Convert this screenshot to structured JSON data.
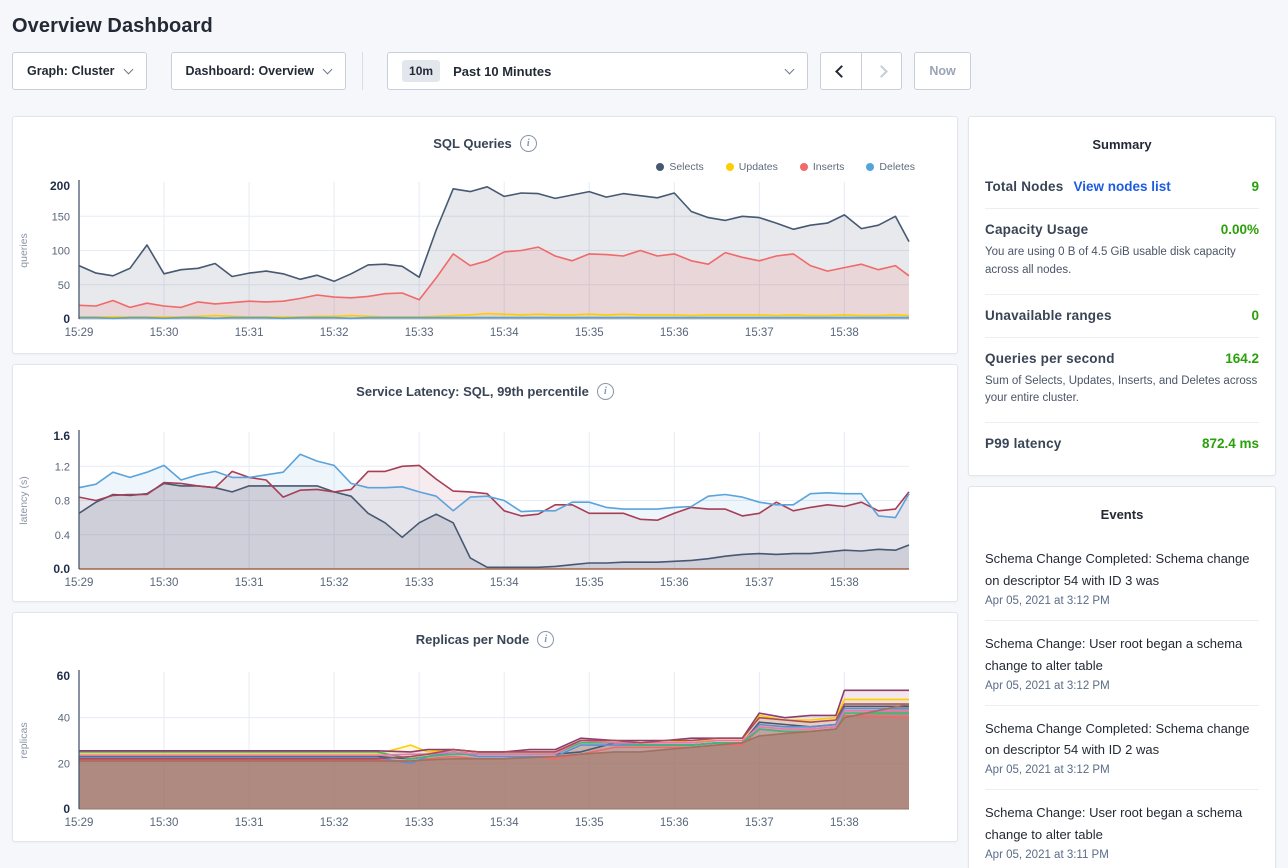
{
  "page_title": "Overview Dashboard",
  "icons": {
    "chevron_down": "chevron-down",
    "chevron_left": "chevron-left",
    "chevron_right": "chevron-right",
    "info": "i"
  },
  "toolbar": {
    "graph_dropdown_label": "Graph: Cluster",
    "dashboard_dropdown_label": "Dashboard: Overview",
    "time_badge": "10m",
    "time_label": "Past 10 Minutes",
    "now_label": "Now"
  },
  "sidebar": {
    "summary": {
      "title": "Summary",
      "rows": [
        {
          "label": "Total Nodes",
          "link": "View nodes list",
          "value": "9"
        },
        {
          "label": "Capacity Usage",
          "value": "0.00%",
          "description": "You are using 0 B of 4.5 GiB usable disk capacity across all nodes."
        },
        {
          "label": "Unavailable ranges",
          "value": "0"
        },
        {
          "label": "Queries per second",
          "value": "164.2",
          "description": "Sum of Selects, Updates, Inserts, and Deletes across your entire cluster."
        },
        {
          "label": "P99 latency",
          "value": "872.4 ms"
        }
      ]
    },
    "events": {
      "title": "Events",
      "items": [
        {
          "text": "Schema Change Completed: Schema change on descriptor 54 with ID 3 was",
          "timestamp": "Apr 05, 2021 at 3:12 PM"
        },
        {
          "text": "Schema Change: User root began a schema change to alter table",
          "timestamp": "Apr 05, 2021 at 3:12 PM"
        },
        {
          "text": "Schema Change Completed: Schema change on descriptor 54 with ID 2 was",
          "timestamp": "Apr 05, 2021 at 3:12 PM"
        },
        {
          "text": "Schema Change: User root began a schema change to alter table",
          "timestamp": "Apr 05, 2021 at 3:11 PM"
        }
      ]
    }
  },
  "chart_data": [
    {
      "type": "line",
      "title": "SQL Queries",
      "ylabel": "queries",
      "ylim": [
        0,
        200
      ],
      "yticks": [
        {
          "v": 0,
          "label": "0"
        },
        {
          "v": 50,
          "label": "50"
        },
        {
          "v": 100,
          "label": "100"
        },
        {
          "v": 150,
          "label": "150"
        },
        {
          "v": 200,
          "label": "200"
        }
      ],
      "xlim": [
        0,
        9.76
      ],
      "xticks": [
        {
          "v": 0,
          "label": "15:29"
        },
        {
          "v": 1,
          "label": "15:30"
        },
        {
          "v": 2,
          "label": "15:31"
        },
        {
          "v": 3,
          "label": "15:32"
        },
        {
          "v": 4,
          "label": "15:33"
        },
        {
          "v": 5,
          "label": "15:34"
        },
        {
          "v": 6,
          "label": "15:35"
        },
        {
          "v": 7,
          "label": "15:36"
        },
        {
          "v": 8,
          "label": "15:37"
        },
        {
          "v": 9,
          "label": "15:38"
        }
      ],
      "legend": true,
      "baseline_color": "#cfd5de",
      "x": [
        0,
        0.2,
        0.4,
        0.6,
        0.8,
        1,
        1.2,
        1.4,
        1.6,
        1.8,
        2,
        2.2,
        2.4,
        2.6,
        2.8,
        3,
        3.2,
        3.4,
        3.6,
        3.8,
        4,
        4.2,
        4.4,
        4.6,
        4.8,
        5,
        5.2,
        5.4,
        5.6,
        5.8,
        6,
        6.2,
        6.4,
        6.6,
        6.8,
        7,
        7.2,
        7.4,
        7.6,
        7.8,
        8,
        8.2,
        8.4,
        8.6,
        8.8,
        9,
        9.2,
        9.4,
        9.6,
        9.76
      ],
      "series": [
        {
          "name": "Selects",
          "color": "#475872",
          "fill_opacity": 0.13,
          "y": [
            78,
            67,
            63,
            74,
            108,
            66,
            72,
            74,
            81,
            62,
            67,
            70,
            66,
            58,
            64,
            55,
            66,
            79,
            80,
            77,
            61,
            130,
            190,
            186,
            193,
            179,
            184,
            183,
            176,
            181,
            186,
            178,
            183,
            180,
            177,
            184,
            157,
            148,
            144,
            150,
            148,
            140,
            131,
            137,
            140,
            152,
            132,
            137,
            150,
            113
          ]
        },
        {
          "name": "Updates",
          "color": "#ffcd02",
          "fill_opacity": 0.15,
          "y": [
            3,
            3,
            3,
            3,
            3,
            3,
            3,
            4,
            5,
            4,
            3,
            3,
            3,
            3,
            4,
            4,
            5,
            4,
            3,
            3,
            3,
            4,
            5,
            6,
            8,
            7,
            6,
            7,
            6,
            6,
            7,
            6,
            7,
            6,
            6,
            6,
            5,
            6,
            6,
            6,
            6,
            5,
            6,
            5,
            5,
            6,
            5,
            5,
            6,
            5
          ]
        },
        {
          "name": "Inserts",
          "color": "#f16969",
          "fill_opacity": 0.15,
          "y": [
            20,
            19,
            27,
            17,
            23,
            19,
            17,
            25,
            22,
            24,
            26,
            25,
            26,
            30,
            35,
            32,
            31,
            33,
            37,
            38,
            28,
            60,
            95,
            78,
            85,
            98,
            100,
            105,
            92,
            85,
            95,
            94,
            92,
            100,
            92,
            95,
            85,
            80,
            97,
            90,
            85,
            92,
            95,
            78,
            70,
            75,
            80,
            72,
            78,
            63
          ]
        },
        {
          "name": "Deletes",
          "color": "#55a3dd",
          "fill_opacity": 0.2,
          "y": [
            2,
            2,
            1,
            2,
            2,
            1,
            2,
            2,
            1,
            2,
            2,
            2,
            1,
            2,
            2,
            2,
            1,
            2,
            2,
            2,
            2,
            2,
            2,
            2,
            2,
            2,
            2,
            2,
            2,
            2,
            2,
            2,
            2,
            2,
            2,
            2,
            2,
            2,
            2,
            2,
            2,
            2,
            2,
            2,
            2,
            2,
            2,
            2,
            2,
            2
          ]
        }
      ]
    },
    {
      "type": "line",
      "title": "Service Latency: SQL, 99th percentile",
      "ylabel": "latency (s)",
      "ylim": [
        0,
        1.6
      ],
      "yticks": [
        {
          "v": 0,
          "label": "0.0"
        },
        {
          "v": 0.4,
          "label": "0.4"
        },
        {
          "v": 0.8,
          "label": "0.8"
        },
        {
          "v": 1.2,
          "label": "1.2"
        },
        {
          "v": 1.6,
          "label": "1.6"
        }
      ],
      "xlim": [
        0,
        9.76
      ],
      "xticks": [
        {
          "v": 0,
          "label": "15:29"
        },
        {
          "v": 1,
          "label": "15:30"
        },
        {
          "v": 2,
          "label": "15:31"
        },
        {
          "v": 3,
          "label": "15:32"
        },
        {
          "v": 4,
          "label": "15:33"
        },
        {
          "v": 5,
          "label": "15:34"
        },
        {
          "v": 6,
          "label": "15:35"
        },
        {
          "v": 7,
          "label": "15:36"
        },
        {
          "v": 8,
          "label": "15:37"
        },
        {
          "v": 9,
          "label": "15:38"
        }
      ],
      "legend": false,
      "baseline_color": "#b2653d",
      "x": [
        0,
        0.2,
        0.4,
        0.6,
        0.8,
        1,
        1.2,
        1.4,
        1.6,
        1.8,
        2,
        2.2,
        2.4,
        2.6,
        2.8,
        3,
        3.2,
        3.4,
        3.6,
        3.8,
        4,
        4.2,
        4.4,
        4.6,
        4.8,
        5,
        5.2,
        5.4,
        5.6,
        5.8,
        6,
        6.2,
        6.4,
        6.6,
        6.8,
        7,
        7.2,
        7.4,
        7.6,
        7.8,
        8,
        8.2,
        8.4,
        8.6,
        8.8,
        9,
        9.2,
        9.4,
        9.6,
        9.76
      ],
      "series": [
        {
          "name": "",
          "color": "#475872",
          "fill_opacity": 0.15,
          "y": [
            0.65,
            0.78,
            0.87,
            0.86,
            0.88,
            1.0,
            0.97,
            0.97,
            0.95,
            0.9,
            0.97,
            0.97,
            0.97,
            0.97,
            0.97,
            0.9,
            0.85,
            0.65,
            0.54,
            0.37,
            0.54,
            0.64,
            0.54,
            0.13,
            0.02,
            0.02,
            0.02,
            0.02,
            0.03,
            0.05,
            0.07,
            0.07,
            0.08,
            0.08,
            0.08,
            0.09,
            0.1,
            0.12,
            0.15,
            0.17,
            0.18,
            0.17,
            0.18,
            0.18,
            0.2,
            0.22,
            0.21,
            0.23,
            0.22,
            0.28
          ]
        },
        {
          "name": "",
          "color": "#a73e55",
          "fill_opacity": 0.1,
          "y": [
            0.84,
            0.8,
            0.86,
            0.87,
            0.87,
            1.01,
            1.0,
            0.97,
            0.95,
            1.14,
            1.07,
            1.04,
            0.84,
            0.92,
            0.93,
            0.9,
            0.93,
            1.14,
            1.14,
            1.2,
            1.21,
            1.05,
            0.91,
            0.9,
            0.88,
            0.68,
            0.62,
            0.64,
            0.75,
            0.75,
            0.65,
            0.65,
            0.65,
            0.58,
            0.57,
            0.65,
            0.72,
            0.7,
            0.7,
            0.62,
            0.65,
            0.78,
            0.68,
            0.72,
            0.75,
            0.73,
            0.78,
            0.68,
            0.7,
            0.9
          ]
        },
        {
          "name": "",
          "color": "#5ba3db",
          "fill_opacity": 0.1,
          "y": [
            0.95,
            0.99,
            1.13,
            1.07,
            1.13,
            1.21,
            1.04,
            1.1,
            1.14,
            1.07,
            1.07,
            1.1,
            1.13,
            1.34,
            1.26,
            1.21,
            1.0,
            0.95,
            0.95,
            0.96,
            0.9,
            0.85,
            0.68,
            0.84,
            0.85,
            0.8,
            0.67,
            0.68,
            0.68,
            0.78,
            0.78,
            0.72,
            0.7,
            0.7,
            0.7,
            0.72,
            0.73,
            0.85,
            0.87,
            0.84,
            0.78,
            0.75,
            0.75,
            0.88,
            0.89,
            0.88,
            0.88,
            0.62,
            0.6,
            0.88
          ]
        }
      ]
    },
    {
      "type": "line",
      "title": "Replicas per Node",
      "ylabel": "replicas",
      "ylim": [
        0,
        60
      ],
      "yticks": [
        {
          "v": 0,
          "label": "0"
        },
        {
          "v": 20,
          "label": "20"
        },
        {
          "v": 40,
          "label": "40"
        },
        {
          "v": 60,
          "label": "60"
        }
      ],
      "xlim": [
        0,
        9.76
      ],
      "xticks": [
        {
          "v": 0,
          "label": "15:29"
        },
        {
          "v": 1,
          "label": "15:30"
        },
        {
          "v": 2,
          "label": "15:31"
        },
        {
          "v": 3,
          "label": "15:32"
        },
        {
          "v": 4,
          "label": "15:33"
        },
        {
          "v": 5,
          "label": "15:34"
        },
        {
          "v": 6,
          "label": "15:35"
        },
        {
          "v": 7,
          "label": "15:36"
        },
        {
          "v": 8,
          "label": "15:37"
        },
        {
          "v": 9,
          "label": "15:38"
        }
      ],
      "legend": false,
      "baseline_color": "#b7a49b",
      "x": [
        0,
        0.5,
        1,
        1.5,
        2,
        2.5,
        3,
        3.5,
        3.9,
        4.1,
        4.4,
        4.7,
        5,
        5.3,
        5.6,
        5.9,
        6.3,
        6.6,
        6.9,
        7.2,
        7.5,
        7.8,
        8,
        8.3,
        8.6,
        8.9,
        9,
        9.76
      ],
      "series": [
        {
          "name": "",
          "color": "#475872",
          "fill_opacity": 0.12,
          "y": [
            23,
            23,
            23,
            23,
            23,
            23,
            23,
            23,
            22,
            23,
            25,
            24,
            24,
            24,
            24,
            25,
            29,
            28,
            28,
            28,
            29,
            29,
            38,
            37,
            36,
            37,
            45,
            45
          ]
        },
        {
          "name": "",
          "color": "#ffcd02",
          "fill_opacity": 0.12,
          "y": [
            24,
            24,
            24,
            24,
            24,
            24,
            24,
            24,
            28,
            25,
            26,
            25,
            25,
            25,
            25,
            30,
            30,
            29,
            29,
            30,
            30,
            30,
            41,
            39,
            39,
            40,
            48,
            48
          ]
        },
        {
          "name": "",
          "color": "#f16969",
          "fill_opacity": 0.12,
          "y": [
            21.5,
            21.5,
            21.5,
            21.5,
            21.5,
            21.5,
            21.5,
            21.5,
            21,
            22,
            23,
            22,
            22,
            23,
            22,
            24,
            27,
            27,
            27,
            27,
            28,
            28,
            35,
            34,
            34,
            35,
            41,
            40
          ]
        },
        {
          "name": "",
          "color": "#5f8fd0",
          "fill_opacity": 0.12,
          "y": [
            22.5,
            22.5,
            22.5,
            22.5,
            22.5,
            22.5,
            22.5,
            22.5,
            20,
            23,
            25,
            23,
            23,
            23,
            23,
            28,
            28,
            28,
            28,
            28,
            29,
            29,
            37,
            36,
            36,
            37,
            44,
            44
          ]
        },
        {
          "name": "",
          "color": "#3eb876",
          "fill_opacity": 0.12,
          "y": [
            25,
            25,
            25,
            25,
            25,
            25,
            25,
            25,
            22,
            23,
            24,
            24,
            24,
            24,
            24,
            29,
            29,
            28,
            28,
            28,
            29,
            29,
            35,
            34,
            34,
            35,
            42,
            42
          ]
        },
        {
          "name": "",
          "color": "#e878ae",
          "fill_opacity": 0.12,
          "y": [
            23.5,
            23.5,
            23.5,
            23.5,
            23.5,
            23.5,
            23.5,
            23.5,
            24,
            24,
            25,
            24,
            24,
            24,
            24,
            30,
            29,
            29,
            29,
            29,
            30,
            30,
            36,
            35,
            35,
            36,
            43,
            43
          ]
        },
        {
          "name": "",
          "color": "#8e3c6e",
          "fill_opacity": 0.12,
          "y": [
            25.5,
            25.5,
            25.5,
            25.5,
            25.5,
            25.5,
            25.5,
            25.5,
            25,
            26,
            26,
            25,
            25,
            26,
            26,
            31,
            30,
            30,
            30,
            31,
            31,
            31,
            42,
            40,
            41,
            41,
            52,
            52
          ]
        },
        {
          "name": "",
          "color": "#a64c5d",
          "fill_opacity": 0.12,
          "y": [
            22,
            22,
            22,
            22,
            22,
            22,
            22,
            22,
            23,
            24,
            26,
            25,
            25,
            25,
            25,
            30,
            30,
            29,
            30,
            30,
            31,
            31,
            40,
            39,
            38,
            39,
            46,
            46
          ]
        },
        {
          "name": "",
          "color": "#a0715e",
          "fill_opacity": 0.5,
          "y": [
            21,
            21,
            21,
            21,
            21,
            21,
            21,
            21,
            21,
            21.5,
            22,
            22,
            22,
            22.5,
            23,
            24,
            25,
            25,
            26,
            27,
            28,
            29,
            32,
            33,
            34,
            35,
            40,
            46
          ]
        }
      ]
    }
  ]
}
